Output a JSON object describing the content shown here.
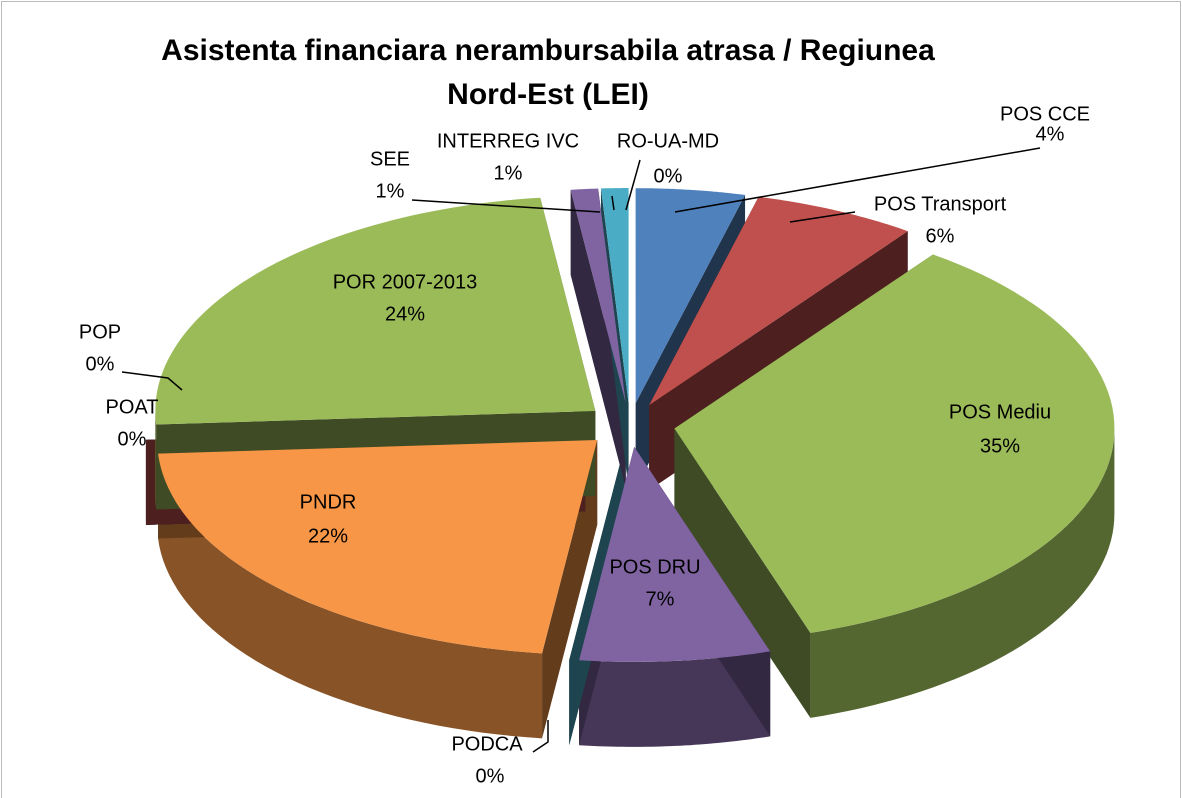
{
  "chart_data": {
    "type": "pie3d",
    "title": [
      "Asistenta financiara  nerambursabila atrasa / Regiunea",
      "Nord-Est (LEI)"
    ],
    "categories": [
      "POS CCE",
      "POS Transport",
      "POS Mediu",
      "POS DRU",
      "PODCA",
      "PNDR",
      "POAT",
      "POP",
      "POR 2007-2013",
      "SEE",
      "INTERREG IVC",
      "RO-UA-MD"
    ],
    "values": [
      4,
      6,
      35,
      7,
      0,
      22,
      0,
      0,
      24,
      1,
      1,
      0
    ],
    "value_labels": [
      "4%",
      "6%",
      "35%",
      "7%",
      "0%",
      "22%",
      "0%",
      "0%",
      "24%",
      "1%",
      "1%",
      "0%"
    ],
    "colors": [
      "#4f81bd",
      "#c0504d",
      "#9bbb59",
      "#8064a2",
      "#4bacc6",
      "#f79646",
      "#1f497d",
      "#c0504d",
      "#9bbb59",
      "#8064a2",
      "#4bacc6",
      "#f79646"
    ]
  }
}
